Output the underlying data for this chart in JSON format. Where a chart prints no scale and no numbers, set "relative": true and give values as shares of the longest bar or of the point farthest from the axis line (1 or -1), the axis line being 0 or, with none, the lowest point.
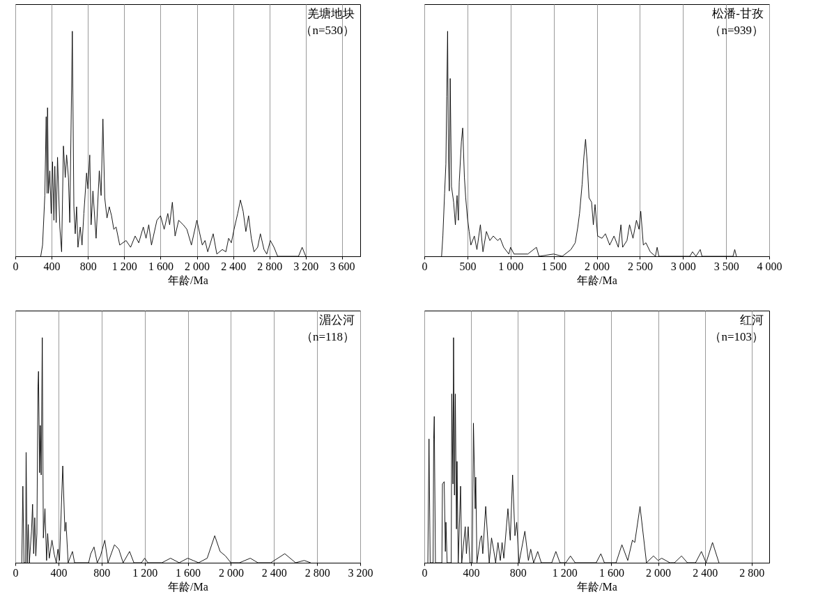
{
  "chart_data": [
    {
      "type": "line",
      "relative": true,
      "xlabel": "年龄/Ma",
      "annotations": [
        "羌塘地块",
        "（n=530）"
      ],
      "grid": "x",
      "xlim": [
        0,
        3800
      ],
      "xticks": [
        0,
        400,
        800,
        {
          "value": 1200,
          "label": "1 200"
        },
        {
          "value": 1600,
          "label": "1 600"
        },
        {
          "value": 2000,
          "label": "2 000"
        },
        {
          "value": 2400,
          "label": "2 400"
        },
        {
          "value": 2800,
          "label": "2 800"
        },
        {
          "value": 3200,
          "label": "3 200"
        },
        {
          "value": 3600,
          "label": "3 600"
        }
      ],
      "series": [
        {
          "color": "#000000",
          "x": [
            280,
            300,
            325,
            340,
            350,
            355,
            365,
            380,
            395,
            410,
            425,
            435,
            450,
            465,
            490,
            510,
            530,
            550,
            565,
            585,
            600,
            628,
            645,
            660,
            675,
            690,
            715,
            735,
            755,
            785,
            800,
            820,
            835,
            855,
            875,
            890,
            925,
            945,
            965,
            985,
            1010,
            1035,
            1060,
            1085,
            1110,
            1150,
            1220,
            1270,
            1320,
            1360,
            1410,
            1440,
            1470,
            1500,
            1560,
            1600,
            1640,
            1680,
            1700,
            1730,
            1760,
            1800,
            1850,
            1890,
            1940,
            2000,
            2060,
            2090,
            2120,
            2180,
            2220,
            2280,
            2320,
            2350,
            2380,
            2410,
            2450,
            2480,
            2510,
            2540,
            2570,
            2600,
            2630,
            2670,
            2700,
            2740,
            2770,
            2810,
            2850,
            2890,
            3120,
            3160,
            3200
          ],
          "values": [
            0,
            0.05,
            0.27,
            0.62,
            0.28,
            0.66,
            0.28,
            0.38,
            0.19,
            0.42,
            0.16,
            0.4,
            0.15,
            0.44,
            0.13,
            0.02,
            0.49,
            0.35,
            0.45,
            0.35,
            0.15,
            1,
            0.22,
            0.1,
            0.22,
            0.04,
            0.13,
            0.05,
            0.19,
            0.37,
            0.3,
            0.45,
            0.14,
            0.29,
            0.17,
            0.08,
            0.38,
            0.27,
            0.61,
            0.26,
            0.17,
            0.22,
            0.18,
            0.12,
            0.13,
            0.05,
            0.07,
            0.04,
            0.09,
            0.06,
            0.13,
            0.08,
            0.14,
            0.05,
            0.16,
            0.18,
            0.12,
            0.19,
            0.14,
            0.24,
            0.09,
            0.16,
            0.14,
            0.12,
            0.05,
            0.16,
            0.05,
            0.07,
            0.02,
            0.1,
            0.01,
            0.03,
            0.02,
            0.08,
            0.06,
            0.12,
            0.19,
            0.25,
            0.2,
            0.11,
            0.18,
            0.08,
            0.02,
            0.04,
            0.1,
            0.03,
            0.01,
            0.07,
            0.04,
            0,
            0,
            0.04,
            0
          ]
        }
      ]
    },
    {
      "type": "line",
      "relative": true,
      "xlabel": "年龄/Ma",
      "annotations": [
        "松潘-甘孜",
        "（n=939）"
      ],
      "grid": "x",
      "xlim": [
        0,
        4000
      ],
      "xticks": [
        0,
        500,
        {
          "value": 1000,
          "label": "1 000"
        },
        {
          "value": 1500,
          "label": "1 500"
        },
        {
          "value": 2000,
          "label": "2 000"
        },
        {
          "value": 2500,
          "label": "2 500"
        },
        {
          "value": 3000,
          "label": "3 000"
        },
        {
          "value": 3500,
          "label": "3 500"
        },
        {
          "value": 4000,
          "label": "4 000"
        }
      ],
      "series": [
        {
          "color": "#000000",
          "x": [
            200,
            215,
            235,
            250,
            260,
            270,
            280,
            290,
            300,
            315,
            340,
            360,
            380,
            395,
            405,
            430,
            445,
            465,
            480,
            500,
            520,
            540,
            580,
            610,
            650,
            680,
            720,
            760,
            800,
            850,
            880,
            920,
            980,
            1000,
            1040,
            1200,
            1300,
            1330,
            1500,
            1600,
            1700,
            1750,
            1780,
            1800,
            1830,
            1850,
            1870,
            1890,
            1910,
            1940,
            1960,
            1980,
            2010,
            2060,
            2100,
            2150,
            2200,
            2250,
            2280,
            2300,
            2350,
            2380,
            2420,
            2460,
            2490,
            2510,
            2540,
            2570,
            2620,
            2680,
            2700,
            2720,
            3080,
            3110,
            3150,
            3200,
            3220,
            3580,
            3600,
            3620
          ],
          "values": [
            0,
            0.09,
            0.28,
            0.41,
            0.71,
            1,
            0.43,
            0.29,
            0.79,
            0.31,
            0.24,
            0.14,
            0.27,
            0.16,
            0.33,
            0.51,
            0.57,
            0.35,
            0.26,
            0.17,
            0.11,
            0.05,
            0.09,
            0.03,
            0.14,
            0.02,
            0.11,
            0.07,
            0.09,
            0.07,
            0.08,
            0.04,
            0.01,
            0.04,
            0.01,
            0.01,
            0.04,
            0,
            0.01,
            0,
            0.03,
            0.06,
            0.13,
            0.19,
            0.32,
            0.44,
            0.52,
            0.41,
            0.26,
            0.24,
            0.14,
            0.23,
            0.09,
            0.08,
            0.1,
            0.05,
            0.09,
            0.04,
            0.14,
            0.04,
            0.07,
            0.14,
            0.08,
            0.16,
            0.12,
            0.2,
            0.05,
            0.06,
            0.02,
            0,
            0.04,
            0,
            0,
            0.02,
            0,
            0.03,
            0,
            0,
            0.03,
            0
          ]
        }
      ]
    },
    {
      "type": "line",
      "relative": true,
      "xlabel": "年龄/Ma",
      "annotations": [
        "湄公河",
        "（n=118）"
      ],
      "grid": "x",
      "xlim": [
        0,
        3200
      ],
      "xticks": [
        0,
        400,
        800,
        {
          "value": 1200,
          "label": "1 200"
        },
        {
          "value": 1600,
          "label": "1 600"
        },
        {
          "value": 2000,
          "label": "2 000"
        },
        {
          "value": 2400,
          "label": "2 400"
        },
        {
          "value": 2800,
          "label": "2 800"
        },
        {
          "value": 3200,
          "label": "3 200"
        }
      ],
      "series": [
        {
          "color": "#000000",
          "x": [
            60,
            70,
            80,
            95,
            100,
            110,
            120,
            130,
            150,
            160,
            170,
            180,
            190,
            200,
            210,
            215,
            225,
            232,
            240,
            250,
            260,
            275,
            290,
            300,
            315,
            340,
            360,
            380,
            395,
            410,
            440,
            460,
            470,
            490,
            530,
            550,
            680,
            700,
            730,
            760,
            790,
            830,
            860,
            920,
            960,
            1000,
            1060,
            1100,
            1170,
            1200,
            1230,
            1360,
            1440,
            1520,
            1600,
            1650,
            1700,
            1780,
            1850,
            1900,
            1950,
            2000,
            2080,
            2180,
            2250,
            2370,
            2500,
            2600,
            2680,
            2740
          ],
          "values": [
            0,
            0.34,
            0,
            0,
            0.49,
            0,
            0.17,
            0,
            0.14,
            0.26,
            0.04,
            0.2,
            0.03,
            0.13,
            0.78,
            0.85,
            0.4,
            0.61,
            0.39,
            1,
            0.11,
            0.24,
            0.01,
            0.13,
            0.02,
            0.1,
            0.04,
            0,
            0.06,
            0.01,
            0.43,
            0.14,
            0.18,
            0,
            0.05,
            0,
            0,
            0.04,
            0.07,
            0,
            0.03,
            0.1,
            0,
            0.08,
            0.06,
            0,
            0.05,
            0,
            0,
            0.02,
            0,
            0,
            0.02,
            0,
            0.02,
            0.01,
            0,
            0.02,
            0.12,
            0.05,
            0.03,
            0,
            0,
            0.02,
            0,
            0,
            0.04,
            0,
            0.01,
            0
          ]
        }
      ]
    },
    {
      "type": "line",
      "relative": true,
      "xlabel": "年龄/Ma",
      "annotations": [
        "红河",
        "（n=103）"
      ],
      "grid": "x",
      "xlim": [
        0,
        2950
      ],
      "xticks": [
        0,
        400,
        800,
        {
          "value": 1200,
          "label": "1 200"
        },
        {
          "value": 1600,
          "label": "1 600"
        },
        {
          "value": 2000,
          "label": "2 000"
        },
        {
          "value": 2400,
          "label": "2 400"
        },
        {
          "value": 2800,
          "label": "2 800"
        }
      ],
      "series": [
        {
          "color": "#000000",
          "x": [
            30,
            40,
            50,
            75,
            80,
            85,
            95,
            150,
            155,
            170,
            180,
            185,
            195,
            230,
            235,
            245,
            250,
            258,
            265,
            275,
            280,
            290,
            310,
            320,
            350,
            360,
            375,
            390,
            410,
            420,
            435,
            440,
            450,
            480,
            490,
            500,
            525,
            555,
            575,
            595,
            610,
            630,
            650,
            665,
            680,
            715,
            735,
            755,
            775,
            790,
            810,
            860,
            890,
            910,
            935,
            970,
            1000,
            1090,
            1125,
            1160,
            1210,
            1250,
            1290,
            1470,
            1510,
            1540,
            1640,
            1690,
            1740,
            1780,
            1800,
            1845,
            1900,
            1960,
            2000,
            2030,
            2100,
            2140,
            2200,
            2250,
            2320,
            2370,
            2410,
            2465,
            2520
          ],
          "values": [
            0,
            0.55,
            0,
            0,
            0.55,
            0.65,
            0,
            0,
            0.35,
            0.36,
            0.05,
            0.18,
            0,
            0,
            0.75,
            0.35,
            1,
            0.3,
            0.75,
            0.15,
            0.45,
            0,
            0.34,
            0,
            0.16,
            0.04,
            0.16,
            0,
            0,
            0.62,
            0.24,
            0.38,
            0,
            0.11,
            0.12,
            0.04,
            0.25,
            0,
            0.11,
            0.05,
            0,
            0.09,
            0.01,
            0.09,
            0.02,
            0.24,
            0.1,
            0.39,
            0.12,
            0.18,
            0,
            0.14,
            0.01,
            0.06,
            0,
            0.05,
            0,
            0,
            0.05,
            0,
            0,
            0.03,
            0,
            0,
            0.04,
            0,
            0,
            0.08,
            0.01,
            0.1,
            0.09,
            0.25,
            0,
            0.03,
            0.01,
            0.02,
            0,
            0,
            0.03,
            0,
            0,
            0.05,
            0,
            0.09,
            0
          ]
        }
      ]
    }
  ]
}
